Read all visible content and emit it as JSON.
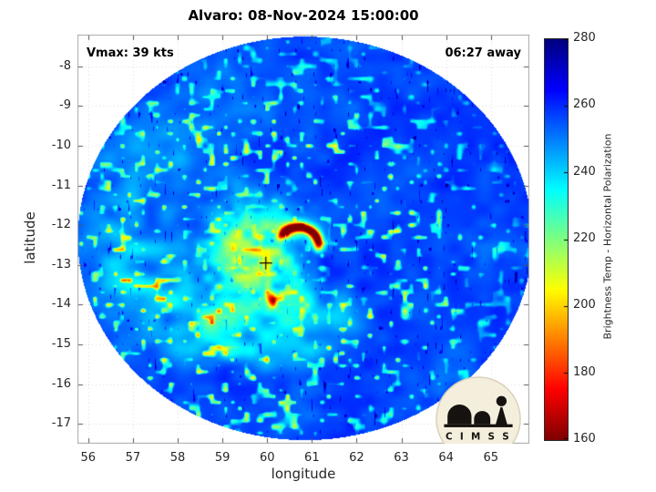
{
  "title": "Alvaro: 08-Nov-2024 15:00:00",
  "annotations": {
    "vmax": "Vmax: 39 kts",
    "eta": "06:27 away"
  },
  "axes": {
    "xlabel": "longitude",
    "ylabel": "latitude",
    "x_ticks": [
      56,
      57,
      58,
      59,
      60,
      61,
      62,
      63,
      64,
      65
    ],
    "y_ticks": [
      -8,
      -9,
      -10,
      -11,
      -12,
      -13,
      -14,
      -15,
      -16,
      -17
    ]
  },
  "colorbar": {
    "label": "Brightness Temp - Horizontal Polarization",
    "ticks": [
      280,
      260,
      240,
      220,
      200,
      180,
      160
    ],
    "min": 160,
    "max": 280,
    "colormap": "jet reversed (high=dark blue, low=dark red)"
  },
  "logo": {
    "text": "C I M S S"
  },
  "chart_data": {
    "type": "heatmap",
    "title": "Alvaro: 08-Nov-2024 15:00:00",
    "storm_name": "Alvaro",
    "datetime": "08-Nov-2024 15:00:00",
    "vmax_kts": 39,
    "time_away": "06:27",
    "xlabel": "longitude",
    "ylabel": "latitude",
    "xlim": [
      55.76,
      65.86
    ],
    "ylim": [
      -17.5,
      -7.2
    ],
    "value_label": "Brightness Temp - Horizontal Polarization",
    "value_range_k": [
      160,
      280
    ],
    "background_value_k": 257,
    "swath": {
      "shape": "circle",
      "center_lon": 60.85,
      "center_lat": -12.33,
      "radius_deg": 5.08
    },
    "storm_center": {
      "lon": 59.97,
      "lat": -12.95,
      "marker": "+"
    },
    "features": [
      {
        "name": "eyewall-warm-core-arc",
        "arc_center_lon": 60.7,
        "arc_center_lat": -12.5,
        "arc_radius_deg": 0.45,
        "min_value_k": 162,
        "desc": "dark red convective arc north-east of the center"
      },
      {
        "name": "convective-burst-south",
        "lon": 60.12,
        "lat": -13.9,
        "min_value_k": 195
      },
      {
        "name": "central-dense-overcast",
        "lon": 59.6,
        "lat": -12.7,
        "sigma_lon": 1.05,
        "sigma_lat": 1.26,
        "depth_k": 40,
        "approx_value_k": 215
      },
      {
        "name": "spiral-rainbands",
        "approx_value_k": 238,
        "desc": "cyan/green banding wrapping the center with scattered cells south and east"
      }
    ]
  }
}
